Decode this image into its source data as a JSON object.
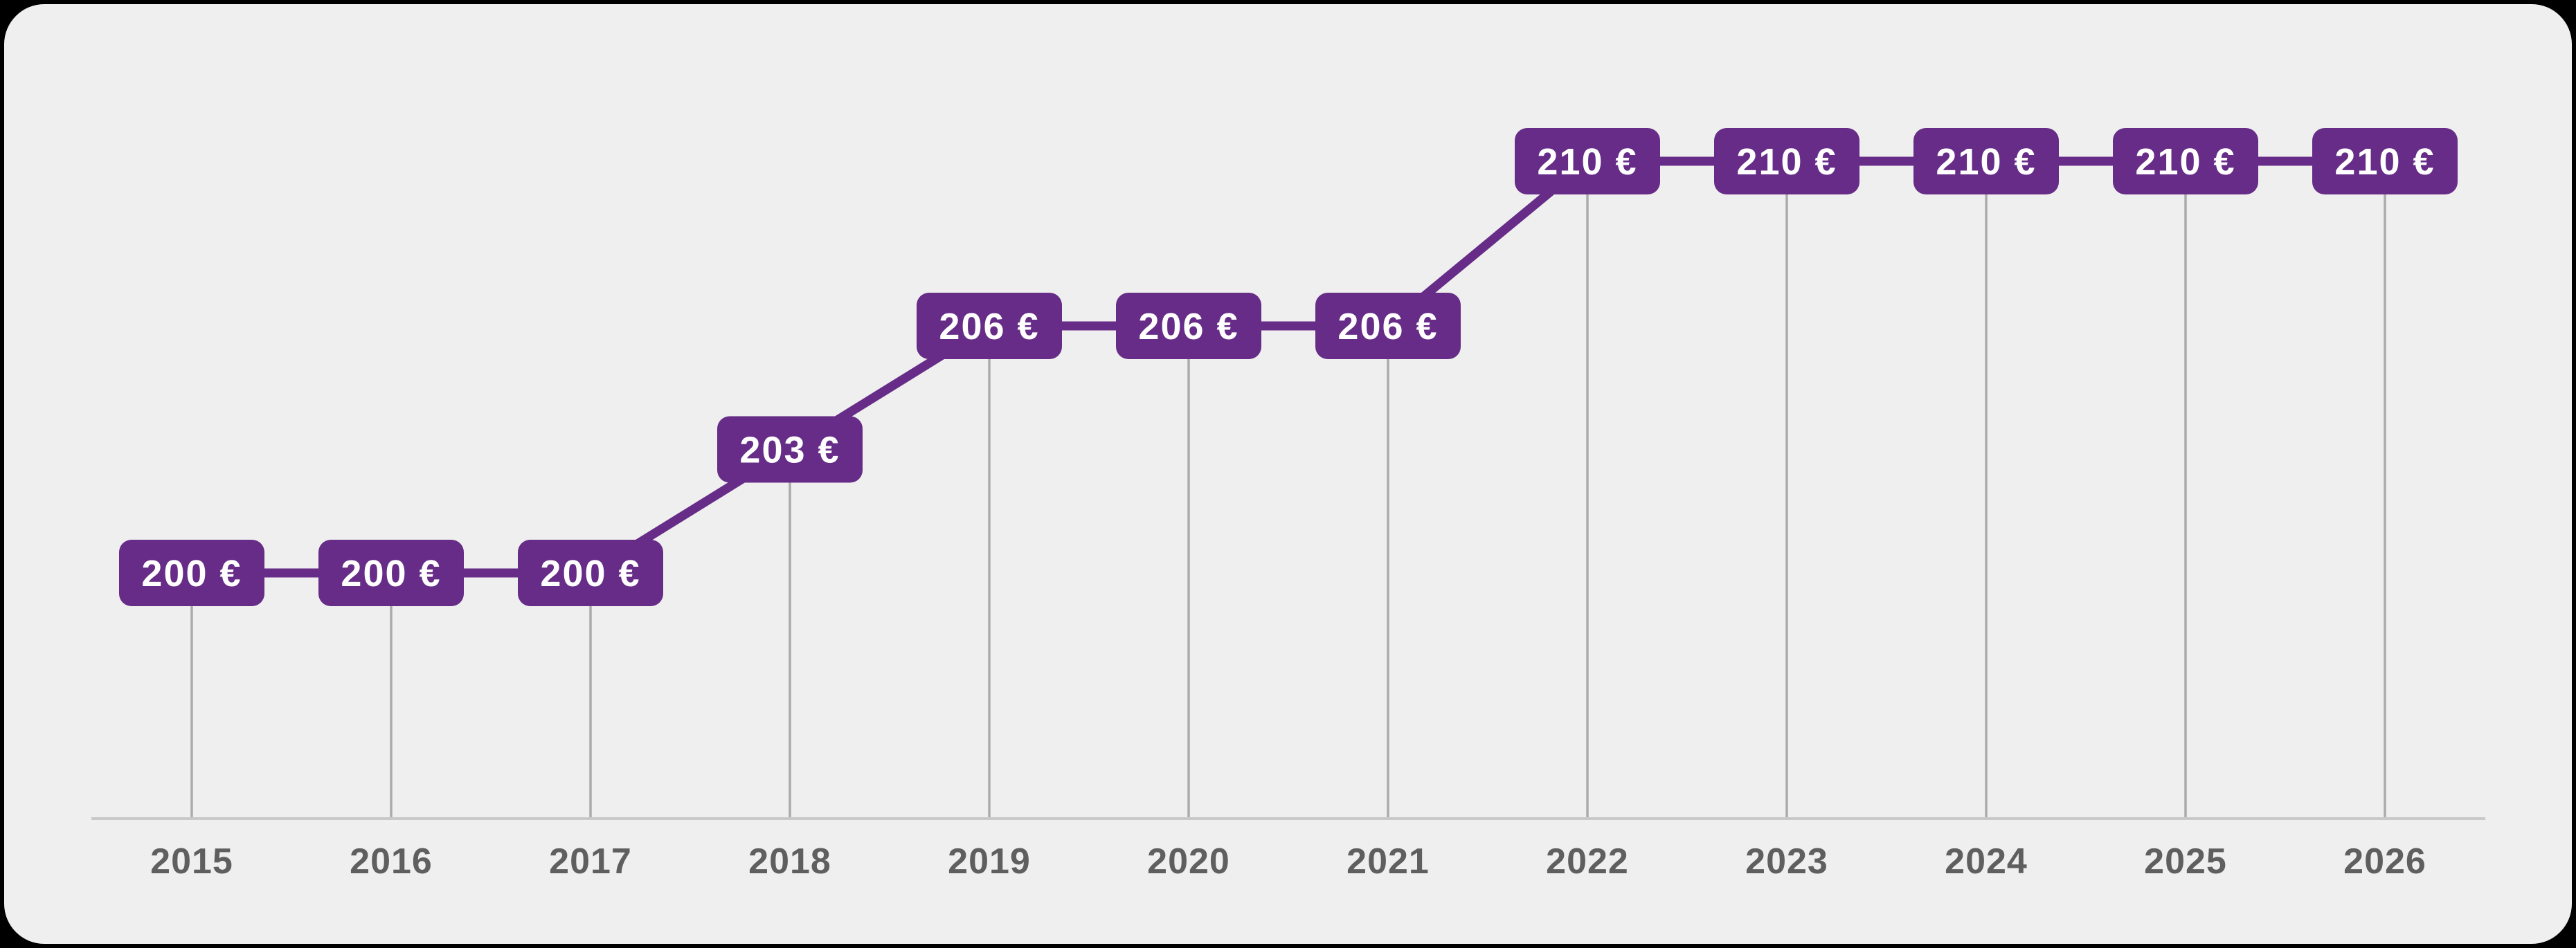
{
  "canvas": {
    "background_color": "#000000",
    "card_color": "#efefef"
  },
  "chart_data": {
    "type": "line",
    "categories": [
      "2015",
      "2016",
      "2017",
      "2018",
      "2019",
      "2020",
      "2021",
      "2022",
      "2023",
      "2024",
      "2025",
      "2026"
    ],
    "values": [
      200,
      200,
      200,
      203,
      206,
      206,
      206,
      210,
      210,
      210,
      210,
      210
    ],
    "labels": [
      "200 €",
      "200 €",
      "200 €",
      "203 €",
      "206 €",
      "206 €",
      "206 €",
      "210 €",
      "210 €",
      "210 €",
      "210 €",
      "210 €"
    ],
    "unit": "€",
    "title": "",
    "xlabel": "",
    "ylabel": "",
    "ylim": [
      197,
      212
    ],
    "grid": "vertical-stems-only",
    "legend": "none",
    "colors": {
      "line": "#662c87",
      "label_box": "#662c87",
      "label_text": "#ffffff",
      "axis_line": "#c9c9c9",
      "stem_line": "#ababab",
      "year_text": "#5f5f5f"
    }
  }
}
